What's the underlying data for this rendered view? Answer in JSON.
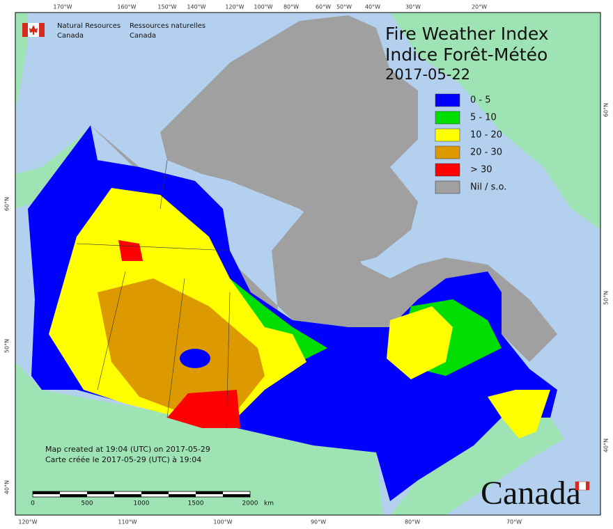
{
  "header": {
    "org_en": [
      "Natural Resources",
      "Canada"
    ],
    "org_fr": [
      "Ressources naturelles",
      "Canada"
    ]
  },
  "title": {
    "line1": "Fire Weather Index",
    "line2": "Indice Forêt-Météo",
    "date": "2017-05-22"
  },
  "legend": [
    {
      "label": "0 - 5",
      "color": "#0000ff"
    },
    {
      "label": "5 - 10",
      "color": "#00dd00"
    },
    {
      "label": "10 - 20",
      "color": "#ffff00"
    },
    {
      "label": "20 - 30",
      "color": "#dd9900"
    },
    {
      "label": "> 30",
      "color": "#ff0000"
    },
    {
      "label": "Nil / s.o.",
      "color": "#a0a0a0"
    }
  ],
  "graticule": {
    "top": [
      "170°W",
      "160°W",
      "150°W",
      "140°W",
      "120°W",
      "100°W",
      "80°W",
      "60°W",
      "50°W",
      "40°W",
      "30°W",
      "20°W"
    ],
    "bottom": [
      "120°W",
      "110°W",
      "100°W",
      "90°W",
      "80°W",
      "70°W"
    ],
    "left": [
      "60°N",
      "50°N",
      "40°N"
    ],
    "right": [
      "60°N",
      "50°N",
      "40°N"
    ]
  },
  "footer": {
    "created_en": "Map created at 19:04 (UTC) on 2017-05-29",
    "created_fr": "Carte créée le 2017-05-29 (UTC) à 19:04"
  },
  "scale_bar": {
    "labels": [
      "0",
      "500",
      "1000",
      "1500",
      "2000"
    ],
    "unit": "km"
  },
  "wordmark": "Canada"
}
